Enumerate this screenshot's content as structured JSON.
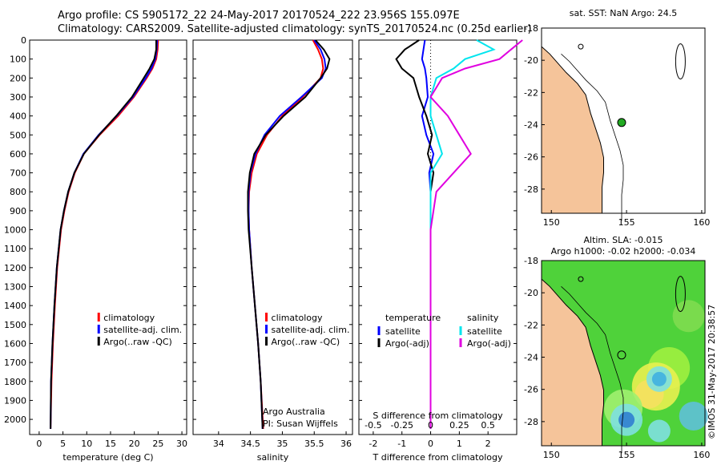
{
  "header": {
    "line1": "Argo profile: CS 5905172_22 24-May-2017 20170524_222 23.956S 155.097E",
    "line2": "Climatology: CARS2009. Satellite-adjusted climatology: synTS_20170524.nc (0.25d earlier)"
  },
  "side_label": "©IMOS 31-May-2017 20:38:57",
  "colors": {
    "climatology": "#ff0000",
    "satellite": "#0000ff",
    "argo": "#000000",
    "s_satellite": "#00e5ee",
    "s_argo": "#e000e0",
    "land": "#f5c49a",
    "argo_marker": "#22aa22"
  },
  "chart_data": [
    {
      "id": "temperature",
      "type": "line",
      "xlabel": "temperature (deg C)",
      "ylabel": "",
      "xlim": [
        -2,
        31
      ],
      "ylim": [
        2080,
        0
      ],
      "xticks": [
        0,
        5,
        10,
        15,
        20,
        25,
        30
      ],
      "yticks": [
        0,
        100,
        200,
        300,
        400,
        500,
        600,
        700,
        800,
        900,
        1000,
        1100,
        1200,
        1300,
        1400,
        1500,
        1600,
        1700,
        1800,
        1900,
        2000
      ],
      "legend": [
        "climatology",
        "satellite-adj. clim.",
        "Argo(..raw -QC)"
      ],
      "depth": [
        0,
        50,
        100,
        150,
        200,
        300,
        400,
        500,
        600,
        700,
        800,
        900,
        1000,
        1200,
        1400,
        1600,
        1800,
        2050
      ],
      "series": [
        {
          "name": "climatology",
          "values": [
            25.0,
            24.9,
            24.6,
            23.8,
            22.6,
            19.9,
            16.6,
            12.7,
            9.4,
            7.5,
            6.2,
            5.3,
            4.6,
            3.8,
            3.3,
            2.9,
            2.6,
            2.4
          ]
        },
        {
          "name": "satellite-adj. clim.",
          "values": [
            24.8,
            24.7,
            24.4,
            23.6,
            22.4,
            19.7,
            16.3,
            12.5,
            9.3,
            7.4,
            6.1,
            5.2,
            4.5,
            3.7,
            3.2,
            2.8,
            2.5,
            2.4
          ]
        },
        {
          "name": "Argo(..raw -QC)",
          "values": [
            24.6,
            24.6,
            24.2,
            23.2,
            22.0,
            19.5,
            16.2,
            12.6,
            9.4,
            7.4,
            6.1,
            5.2,
            4.5,
            3.7,
            3.2,
            2.8,
            2.5,
            2.4
          ]
        }
      ]
    },
    {
      "id": "salinity",
      "type": "line",
      "xlabel": "salinity",
      "ylabel": "",
      "xlim": [
        33.6,
        36.1
      ],
      "ylim": [
        2080,
        0
      ],
      "xticks": [
        34,
        34.5,
        35,
        35.5,
        36
      ],
      "legend": [
        "climatology",
        "satellite-adj. clim.",
        "Argo(..raw -QC)"
      ],
      "annotation": [
        "Argo Australia",
        "PI: Susan Wijffels"
      ],
      "depth": [
        0,
        50,
        100,
        150,
        200,
        300,
        400,
        500,
        600,
        700,
        800,
        900,
        1000,
        1200,
        1400,
        1600,
        1800,
        2050
      ],
      "series": [
        {
          "name": "climatology",
          "values": [
            35.48,
            35.56,
            35.62,
            35.64,
            35.6,
            35.32,
            35.0,
            34.76,
            34.6,
            34.52,
            34.48,
            34.47,
            34.48,
            34.52,
            34.57,
            34.62,
            34.66,
            34.7
          ]
        },
        {
          "name": "satellite-adj. clim.",
          "values": [
            35.5,
            35.6,
            35.66,
            35.68,
            35.62,
            35.3,
            34.96,
            34.72,
            34.58,
            34.5,
            34.47,
            34.47,
            34.48,
            34.52,
            34.57,
            34.62,
            34.66,
            34.69
          ]
        },
        {
          "name": "Argo(..raw -QC)",
          "values": [
            35.52,
            35.65,
            35.74,
            35.7,
            35.6,
            35.36,
            35.02,
            34.74,
            34.56,
            34.49,
            34.46,
            34.46,
            34.47,
            34.52,
            34.57,
            34.62,
            34.66,
            34.69
          ]
        }
      ]
    },
    {
      "id": "differences",
      "type": "line",
      "xlabel": "T difference from climatology",
      "x2label": "S difference from climatology",
      "xlim": [
        -2.5,
        3
      ],
      "ylim": [
        2080,
        0
      ],
      "xticks": [
        -2,
        -1,
        0,
        1,
        2
      ],
      "x2ticks": [
        "-0.5",
        "-0.25",
        "0",
        "0.25",
        "0.5"
      ],
      "legend_t_title": "temperature",
      "legend_s_title": "salinity",
      "legend": [
        "satellite",
        "Argo(-adj)"
      ],
      "depth": [
        0,
        50,
        100,
        150,
        200,
        300,
        400,
        500,
        600,
        700,
        800,
        1000,
        1500,
        2050
      ],
      "series": [
        {
          "name": "T satellite",
          "values": [
            -0.2,
            -0.25,
            -0.3,
            -0.2,
            -0.15,
            -0.1,
            -0.3,
            -0.15,
            0.1,
            -0.05,
            0,
            0,
            0,
            0
          ]
        },
        {
          "name": "T Argo(-adj)",
          "values": [
            -0.4,
            -0.9,
            -1.2,
            -1.0,
            -0.6,
            -0.4,
            -0.15,
            0.05,
            -0.1,
            0.1,
            0,
            0,
            0,
            0
          ]
        },
        {
          "name": "S satellite",
          "values": [
            0.4,
            0.55,
            0.3,
            0.2,
            0.05,
            0.0,
            0.0,
            0.05,
            0.1,
            0.0,
            0.0,
            0.0,
            0.0,
            0.0
          ]
        },
        {
          "name": "S Argo(-adj)",
          "values": [
            0.8,
            0.7,
            0.6,
            0.3,
            0.1,
            0.0,
            0.15,
            0.25,
            0.35,
            0.2,
            0.05,
            0.0,
            0.0,
            0.0
          ]
        }
      ]
    }
  ],
  "maps": [
    {
      "title_line1": "sat. SST: NaN Argo: 24.5",
      "title_line2": "",
      "xticks": [
        "150",
        "155",
        "160"
      ],
      "yticks": [
        "-18",
        "-20",
        "-22",
        "-24",
        "-26",
        "-28"
      ]
    },
    {
      "title_line1": "Altim. SLA: -0.015",
      "title_line2": "Argo h1000: -0.02 h2000: -0.034",
      "xticks": [
        "150",
        "155",
        "160"
      ],
      "yticks": [
        "-18",
        "-20",
        "-22",
        "-24",
        "-26",
        "-28"
      ]
    }
  ]
}
